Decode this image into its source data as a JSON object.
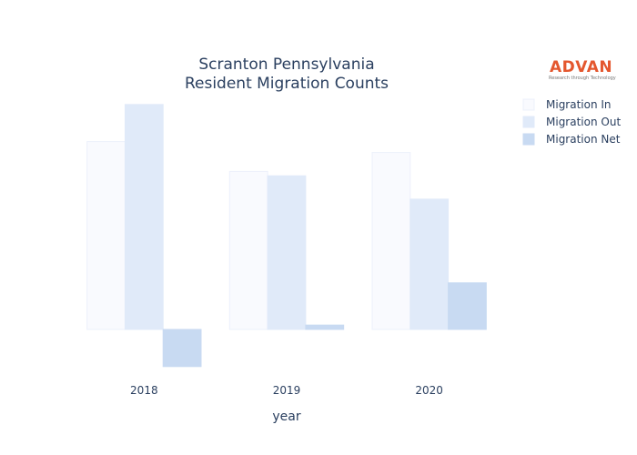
{
  "chart_data": {
    "type": "bar",
    "title_lines": [
      "Scranton Pennsylvania",
      "Resident Migration Counts"
    ],
    "xlabel": "year",
    "ylabel": "",
    "categories": [
      "2018",
      "2019",
      "2020"
    ],
    "series": [
      {
        "name": "Migration In",
        "values": [
          2580,
          2170,
          2430
        ],
        "color": "#f9fafe",
        "stroke": "#ecf0fb"
      },
      {
        "name": "Migration Out",
        "values": [
          3090,
          2110,
          1790
        ],
        "color": "#e0eaf9",
        "stroke": "#e0eaf9"
      },
      {
        "name": "Migration Net",
        "values": [
          -510,
          60,
          640
        ],
        "color": "#c8daf2",
        "stroke": "#c8daf2"
      }
    ],
    "ylim": [
      -600,
      3150
    ],
    "grid": false,
    "legend_position": "top-right"
  },
  "logo": {
    "name": "ADVAN",
    "tagline": "Research through Technology"
  }
}
